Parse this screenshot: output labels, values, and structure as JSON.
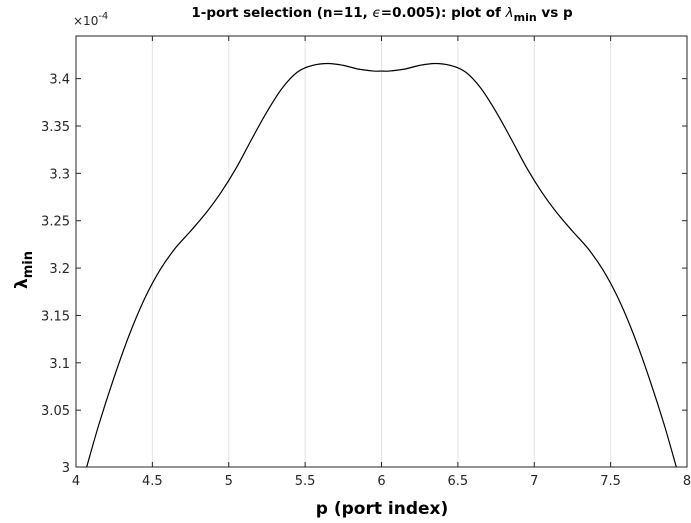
{
  "chart_data": {
    "type": "line",
    "title_parts": {
      "prefix": "1-port selection (n=11, ",
      "eps_symbol": "ϵ",
      "middle": "=0.005): plot of ",
      "lambda_symbol": "λ",
      "lambda_sub": "min",
      "suffix": " vs p"
    },
    "xlabel": "p (port index)",
    "ylabel_symbol": "λ",
    "ylabel_sub": "min",
    "y_exponent_base": "×10",
    "y_exponent_power": "-4",
    "xlim": [
      4,
      8
    ],
    "ylim": [
      2.99,
      3.445
    ],
    "x_ticks": [
      4,
      4.5,
      5,
      5.5,
      6,
      6.5,
      7,
      7.5,
      8
    ],
    "x_tick_labels": [
      "4",
      "4.5",
      "5",
      "5.5",
      "6",
      "6.5",
      "7",
      "7.5",
      "8"
    ],
    "y_ticks": [
      2.99,
      3.05,
      3.1,
      3.15,
      3.2,
      3.25,
      3.3,
      3.35,
      3.4
    ],
    "y_tick_labels": [
      "3",
      "3.05",
      "3.1",
      "3.15",
      "3.2",
      "3.25",
      "3.3",
      "3.35",
      "3.4"
    ],
    "grid": "x-only",
    "series": [
      {
        "color": "#000000",
        "x": [
          4.07,
          4.15,
          4.25,
          4.35,
          4.45,
          4.55,
          4.65,
          4.75,
          4.85,
          4.95,
          5.05,
          5.15,
          5.25,
          5.35,
          5.45,
          5.55,
          5.65,
          5.75,
          5.85,
          5.95,
          6.0,
          6.05,
          6.15,
          6.25,
          6.35,
          6.45,
          6.55,
          6.65,
          6.75,
          6.85,
          6.95,
          7.05,
          7.15,
          7.25,
          7.35,
          7.45,
          7.55,
          7.65,
          7.75,
          7.85,
          7.93
        ],
        "y": [
          2.99,
          3.035,
          3.085,
          3.13,
          3.168,
          3.198,
          3.221,
          3.239,
          3.258,
          3.28,
          3.306,
          3.336,
          3.365,
          3.39,
          3.407,
          3.414,
          3.416,
          3.414,
          3.41,
          3.408,
          3.408,
          3.408,
          3.41,
          3.414,
          3.416,
          3.414,
          3.407,
          3.39,
          3.365,
          3.336,
          3.306,
          3.28,
          3.258,
          3.239,
          3.221,
          3.198,
          3.168,
          3.13,
          3.085,
          3.035,
          2.99
        ]
      }
    ]
  }
}
